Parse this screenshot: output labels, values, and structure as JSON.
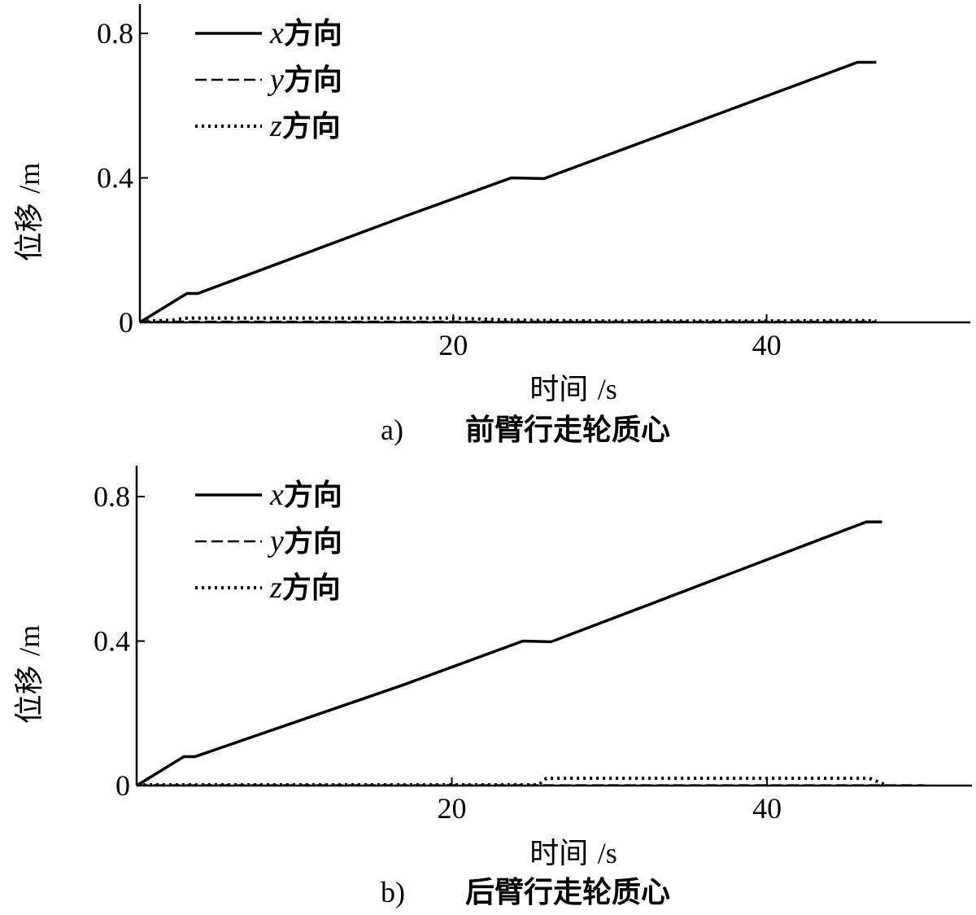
{
  "chart_data": [
    {
      "type": "line",
      "caption_letter": "a)",
      "caption": "前臂行走轮质心",
      "xlabel": "时间",
      "xunit": "/s",
      "ylabel": "位移",
      "yunit": "/m",
      "xlim": [
        0,
        53
      ],
      "ylim": [
        0,
        0.9
      ],
      "xticks": [
        20,
        40
      ],
      "yticks": [
        0,
        0.4,
        0.8
      ],
      "ytick_labels": [
        "0",
        "0.4",
        "0.8"
      ],
      "legend": "top-left",
      "series": [
        {
          "name": "x",
          "label_suffix": "方向",
          "style": "solid",
          "x": [
            0,
            3,
            3.7,
            17,
            23.7,
            25.8,
            45.8,
            47
          ],
          "y": [
            0,
            0.08,
            0.08,
            0.295,
            0.4,
            0.398,
            0.72,
            0.72
          ]
        },
        {
          "name": "y",
          "label_suffix": "方向",
          "style": "dashed",
          "x": [
            0,
            10,
            20,
            30,
            40,
            47
          ],
          "y": [
            0.002,
            0.002,
            0.002,
            0.002,
            0.002,
            0.002
          ]
        },
        {
          "name": "z",
          "label_suffix": "方向",
          "style": "dotted",
          "x": [
            0,
            2,
            3,
            10,
            20,
            24,
            30,
            40,
            46,
            47
          ],
          "y": [
            0.003,
            0.006,
            0.012,
            0.012,
            0.012,
            0.006,
            0.004,
            0.004,
            0.005,
            0.004
          ]
        }
      ]
    },
    {
      "type": "line",
      "caption_letter": "b)",
      "caption": "后臂行走轮质心",
      "xlabel": "时间",
      "xunit": "/s",
      "ylabel": "位移",
      "yunit": "/m",
      "xlim": [
        0,
        53
      ],
      "ylim": [
        0,
        0.9
      ],
      "xticks": [
        20,
        40
      ],
      "yticks": [
        0,
        0.4,
        0.8
      ],
      "ytick_labels": [
        "0",
        "0.4",
        "0.8"
      ],
      "legend": "top-left",
      "series": [
        {
          "name": "x",
          "label_suffix": "方向",
          "style": "solid",
          "x": [
            0,
            3,
            3.7,
            17,
            24.5,
            26.3,
            46.3,
            47.3
          ],
          "y": [
            0,
            0.08,
            0.08,
            0.28,
            0.4,
            0.398,
            0.73,
            0.73
          ]
        },
        {
          "name": "y",
          "label_suffix": "方向",
          "style": "dashed",
          "x": [
            0,
            10,
            20,
            30,
            40,
            50
          ],
          "y": [
            0.001,
            0.001,
            0.001,
            0.001,
            0.001,
            0.001
          ]
        },
        {
          "name": "z",
          "label_suffix": "方向",
          "style": "dotted",
          "x": [
            0,
            25.5,
            26,
            40,
            46.5,
            47.2,
            47.5
          ],
          "y": [
            0.002,
            0.002,
            0.02,
            0.02,
            0.02,
            0.008,
            0.002
          ]
        }
      ]
    }
  ]
}
